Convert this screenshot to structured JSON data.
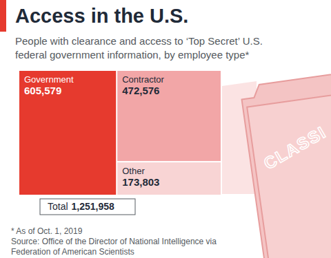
{
  "chart_data": {
    "type": "treemap",
    "title": "Access in the U.S.",
    "subtitle": [
      "People with clearance and access to ‘Top Secret’ U.S.",
      "federal government information, by employee type*"
    ],
    "categories": [
      "Government",
      "Contractor",
      "Other"
    ],
    "values": [
      605579,
      472576,
      173803
    ],
    "value_labels": [
      "605,579",
      "472,576",
      "173,803"
    ],
    "colors": [
      "#e63a2e",
      "#f2a6a7",
      "#f8d4d4"
    ],
    "data_labels": true,
    "total": {
      "label": "Total",
      "value": 1251958,
      "value_label": "1,251,958"
    },
    "stamp": "CLASSI",
    "notes": [
      "* As of Oct. 1, 2019",
      "Source: Office of the Director of National Intelligence via",
      "Federation of American Scientists"
    ]
  }
}
